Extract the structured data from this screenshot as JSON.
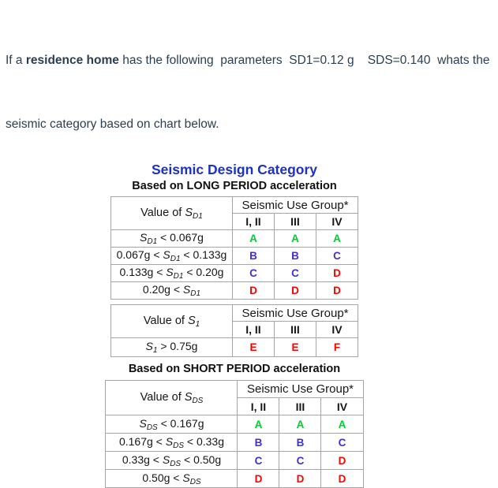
{
  "theme": {
    "title-blue": "#1e31c4",
    "text-dark": "#2d3e50",
    "table-border": "#a6a6a6",
    "ink": "#161616"
  },
  "question": {
    "prefix": "If a ",
    "bold": "residence home",
    "rest": " has the following  parameters  SD1=0.12 g    SDS=0.140  whats the",
    "line2": "seismic category based on chart below."
  },
  "chart": {
    "title": "Seismic Design Category",
    "long_period_heading": "Based on LONG PERIOD acceleration",
    "short_period_heading": "Based on SHORT PERIOD acceleration",
    "group_header": "Seismic Use Group*",
    "group_columns": [
      "I, II",
      "III",
      "IV"
    ],
    "category_colors": {
      "A": "#00cc33",
      "B": "#4030cf",
      "C": "#4030cf",
      "D": "#ff0000",
      "E": "#ff0000",
      "F": "#ff0000"
    },
    "tables": {
      "long_period": {
        "value_header": {
          "pre": "Value of ",
          "sym": "S",
          "sub": "D1"
        },
        "rows": [
          {
            "pre": "",
            "sym": "S",
            "sub": "D1",
            "post": " < 0.067g",
            "cells": [
              "A",
              "A",
              "A"
            ]
          },
          {
            "pre": "0.067g < ",
            "sym": "S",
            "sub": "D1",
            "post": " < 0.133g",
            "cells": [
              "B",
              "B",
              "C"
            ]
          },
          {
            "pre": "0.133g < ",
            "sym": "S",
            "sub": "D1",
            "post": " < 0.20g",
            "cells": [
              "C",
              "C",
              "D"
            ]
          },
          {
            "pre": "0.20g < ",
            "sym": "S",
            "sub": "D1",
            "post": "",
            "cells": [
              "D",
              "D",
              "D"
            ]
          }
        ]
      },
      "s1": {
        "value_header": {
          "pre": "Value of ",
          "sym": "S",
          "sub": "1"
        },
        "rows": [
          {
            "pre": "",
            "sym": "S",
            "sub": "1",
            "post": " > 0.75g",
            "cells": [
              "E",
              "E",
              "F"
            ]
          }
        ]
      },
      "short_period": {
        "value_header": {
          "pre": "Value of ",
          "sym": "S",
          "sub": "DS"
        },
        "rows": [
          {
            "pre": "",
            "sym": "S",
            "sub": "DS",
            "post": " < 0.167g",
            "cells": [
              "A",
              "A",
              "A"
            ]
          },
          {
            "pre": "0.167g < ",
            "sym": "S",
            "sub": "DS",
            "post": " < 0.33g",
            "cells": [
              "B",
              "B",
              "C"
            ]
          },
          {
            "pre": "0.33g < ",
            "sym": "S",
            "sub": "DS",
            "post": " < 0.50g",
            "cells": [
              "C",
              "C",
              "D"
            ]
          },
          {
            "pre": "0.50g < ",
            "sym": "S",
            "sub": "DS",
            "post": "",
            "cells": [
              "D",
              "D",
              "D"
            ]
          }
        ]
      }
    }
  }
}
